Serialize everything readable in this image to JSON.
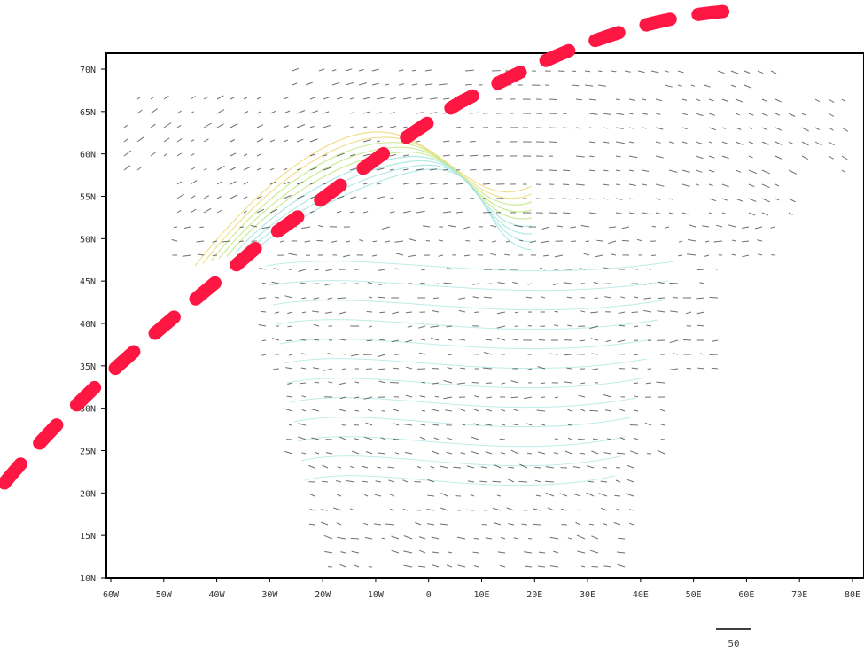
{
  "map": {
    "y_ticks": [
      "70N",
      "65N",
      "60N",
      "55N",
      "50N",
      "45N",
      "40N",
      "35N",
      "30N",
      "25N",
      "20N",
      "15N",
      "10N"
    ],
    "x_ticks": [
      "60W",
      "50W",
      "40W",
      "30W",
      "20W",
      "10W",
      "0",
      "10E",
      "20E",
      "30E",
      "40E",
      "50E",
      "60E",
      "70E",
      "80E"
    ],
    "lat_range": [
      10,
      72
    ],
    "lon_range": [
      -60,
      80
    ],
    "vector_scale_label": "50"
  },
  "colors": {
    "frame": "#000000",
    "vector": "#333333",
    "overlay_path": "#ff1744",
    "contour_light": "#a8e6e0",
    "contour_mid": "#c8e98a",
    "contour_core": "#f0dc82"
  }
}
